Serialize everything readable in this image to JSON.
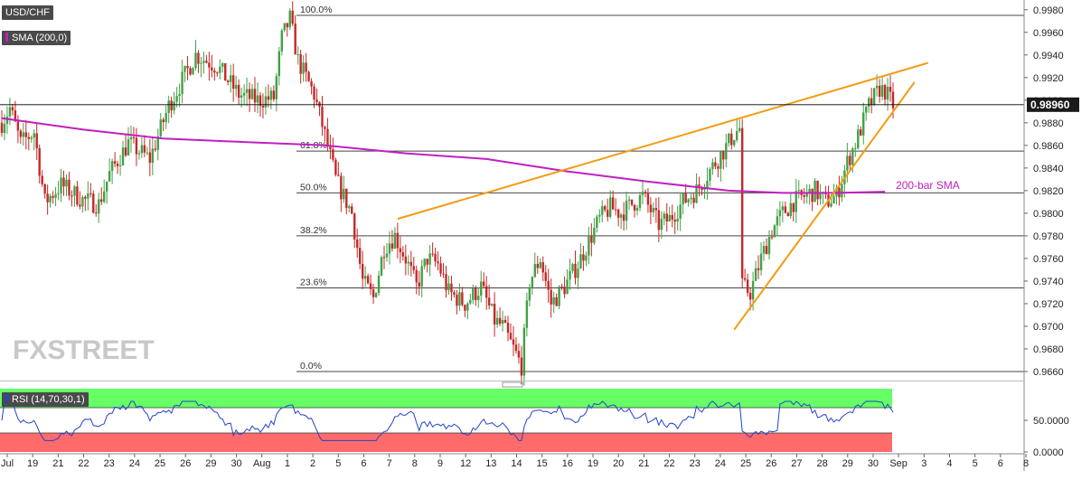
{
  "instrument": {
    "symbol": "USD/CHF",
    "current_price": "0.98960"
  },
  "indicators": {
    "sma_label": "SMA (200,0)",
    "sma_note": "200-bar SMA",
    "rsi_label": "RSI (14,70,30,1)"
  },
  "watermark": {
    "text": "FXSTREET"
  },
  "colors": {
    "bull": "#43a047",
    "bear": "#c62828",
    "sma": "#c020c0",
    "trend": "#f39c12",
    "rsi_line": "#2244cc",
    "overbought": "#66ff66",
    "oversold": "#ff6b6b",
    "price_line": "#000000"
  },
  "chart_data": [
    {
      "type": "candlestick",
      "title": "USD/CHF",
      "ylim": [
        0.9652,
        0.9987
      ],
      "y_ticks": [
        "0.9660",
        "0.9680",
        "0.9700",
        "0.9720",
        "0.9740",
        "0.9760",
        "0.9780",
        "0.9800",
        "0.9820",
        "0.9840",
        "0.9860",
        "0.9880",
        "0.9900",
        "0.9920",
        "0.9940",
        "0.9960",
        "0.9980"
      ],
      "x_ticks": [
        "Jul",
        "19",
        "21",
        "22",
        "23",
        "24",
        "25",
        "26",
        "29",
        "30",
        "Aug",
        "1",
        "2",
        "5",
        "6",
        "7",
        "8",
        "9",
        "12",
        "13",
        "14",
        "15",
        "16",
        "19",
        "20",
        "21",
        "22",
        "23",
        "24",
        "25",
        "26",
        "27",
        "28",
        "29",
        "30",
        "Sep",
        "3",
        "4",
        "5",
        "6",
        "8"
      ],
      "fibonacci": [
        {
          "label": "100.0%",
          "price": 0.9975
        },
        {
          "label": "61.8%",
          "price": 0.9855
        },
        {
          "label": "50.0%",
          "price": 0.9818
        },
        {
          "label": "38.2%",
          "price": 0.978
        },
        {
          "label": "23.6%",
          "price": 0.9734
        },
        {
          "label": "0.0%",
          "price": 0.966
        }
      ],
      "current_price": 0.9896,
      "trendlines": [
        {
          "name": "resistance",
          "from": {
            "bar": 147,
            "price": 0.9795
          },
          "to": {
            "bar": 344,
            "price": 0.9933
          }
        },
        {
          "name": "support",
          "from": {
            "bar": 272,
            "price": 0.9697
          },
          "to": {
            "bar": 339,
            "price": 0.9916
          }
        }
      ],
      "sma_200": [
        [
          0,
          0.9884
        ],
        [
          30,
          0.9874
        ],
        [
          60,
          0.9866
        ],
        [
          90,
          0.9863
        ],
        [
          120,
          0.986
        ],
        [
          150,
          0.9853
        ],
        [
          180,
          0.9848
        ],
        [
          210,
          0.9837
        ],
        [
          240,
          0.9828
        ],
        [
          270,
          0.982
        ],
        [
          290,
          0.9818
        ],
        [
          300,
          0.9818
        ],
        [
          310,
          0.9818
        ],
        [
          328,
          0.9819
        ]
      ],
      "ohlc_path": [
        [
          0,
          0.988
        ],
        [
          3,
          0.9893
        ],
        [
          7,
          0.9862
        ],
        [
          12,
          0.9872
        ],
        [
          16,
          0.981
        ],
        [
          22,
          0.9825
        ],
        [
          30,
          0.9812
        ],
        [
          36,
          0.9808
        ],
        [
          40,
          0.9835
        ],
        [
          47,
          0.9862
        ],
        [
          55,
          0.9848
        ],
        [
          62,
          0.9895
        ],
        [
          72,
          0.994
        ],
        [
          80,
          0.993
        ],
        [
          88,
          0.9905
        ],
        [
          95,
          0.99
        ],
        [
          101,
          0.9902
        ],
        [
          104,
          0.9955
        ],
        [
          107,
          0.9972
        ],
        [
          110,
          0.9935
        ],
        [
          116,
          0.9905
        ],
        [
          121,
          0.986
        ],
        [
          124,
          0.983
        ],
        [
          130,
          0.98
        ],
        [
          134,
          0.974
        ],
        [
          138,
          0.9725
        ],
        [
          142,
          0.977
        ],
        [
          146,
          0.978
        ],
        [
          150,
          0.976
        ],
        [
          154,
          0.9735
        ],
        [
          158,
          0.976
        ],
        [
          162,
          0.9755
        ],
        [
          166,
          0.973
        ],
        [
          172,
          0.972
        ],
        [
          178,
          0.9735
        ],
        [
          183,
          0.9705
        ],
        [
          186,
          0.97
        ],
        [
          190,
          0.968
        ],
        [
          193,
          0.9665
        ],
        [
          196,
          0.974
        ],
        [
          200,
          0.976
        ],
        [
          204,
          0.972
        ],
        [
          209,
          0.9735
        ],
        [
          214,
          0.9755
        ],
        [
          218,
          0.9775
        ],
        [
          222,
          0.9795
        ],
        [
          226,
          0.9805
        ],
        [
          230,
          0.98
        ],
        [
          234,
          0.9808
        ],
        [
          238,
          0.9815
        ],
        [
          244,
          0.979
        ],
        [
          248,
          0.9795
        ],
        [
          253,
          0.981
        ],
        [
          258,
          0.982
        ],
        [
          263,
          0.9838
        ],
        [
          268,
          0.9855
        ],
        [
          272,
          0.987
        ],
        [
          274,
          0.9875
        ],
        [
          275,
          0.9735
        ],
        [
          278,
          0.973
        ],
        [
          282,
          0.976
        ],
        [
          286,
          0.9785
        ],
        [
          290,
          0.98
        ],
        [
          294,
          0.981
        ],
        [
          298,
          0.9815
        ],
        [
          302,
          0.982
        ],
        [
          306,
          0.981
        ],
        [
          310,
          0.9815
        ],
        [
          314,
          0.9845
        ],
        [
          318,
          0.9868
        ],
        [
          322,
          0.9895
        ],
        [
          326,
          0.991
        ],
        [
          328,
          0.9908
        ],
        [
          331,
          0.9896
        ]
      ],
      "series": [
        {
          "name": "200-bar SMA"
        }
      ]
    },
    {
      "type": "line",
      "title": "RSI (14,70,30,1)",
      "ylim": [
        0,
        100
      ],
      "y_ticks": [
        "0.0000",
        "50.0000"
      ],
      "bands": {
        "overbought": 70,
        "oversold": 30
      }
    }
  ]
}
